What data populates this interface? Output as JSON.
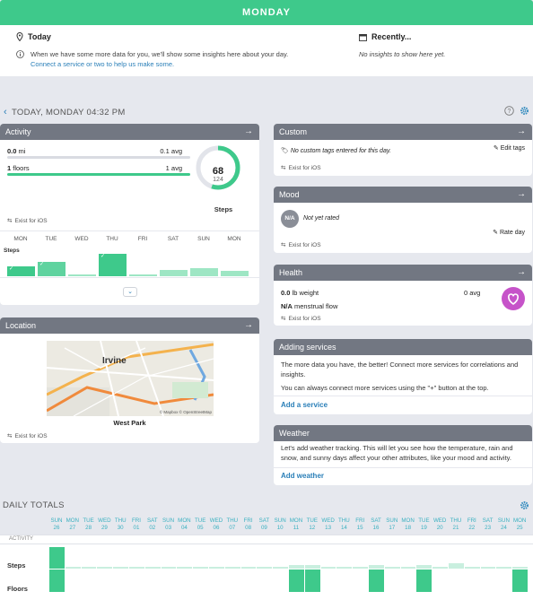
{
  "topbar": {
    "title": "MONDAY"
  },
  "today": {
    "title": "Today",
    "text": "When we have some more data for you, we'll show some insights here about your day.",
    "link": "Connect a service or two to help us make some."
  },
  "recently": {
    "title": "Recently...",
    "text": "No insights to show here yet."
  },
  "subheader": {
    "title": "TODAY, MONDAY 04:32 PM"
  },
  "activity": {
    "title": "Activity",
    "rows": [
      {
        "value": "0.0",
        "unit": "mi",
        "avg": "0.1 avg"
      },
      {
        "value": "1",
        "unit": "floors",
        "avg": "1 avg"
      }
    ],
    "steps": {
      "value": "68",
      "goal": "124",
      "label": "Steps",
      "progress": 0.55
    },
    "ios_label": "Exist for iOS",
    "days": [
      "MON",
      "TUE",
      "WED",
      "THU",
      "FRI",
      "SAT",
      "SUN",
      "MON"
    ],
    "chart_label": "Steps",
    "day_levels": [
      0.45,
      0.65,
      0.1,
      1.0,
      0.1,
      0.3,
      0.35,
      0.25
    ],
    "day_checked": [
      true,
      true,
      false,
      true,
      false,
      false,
      false,
      false
    ]
  },
  "location": {
    "title": "Location",
    "caption": "West Park",
    "map_label": "Irvine",
    "map_credit": "© Mapbox © OpenStreetMap",
    "ios_label": "Exist for iOS"
  },
  "custom": {
    "title": "Custom",
    "text": "No custom tags entered for this day.",
    "action": "Edit tags",
    "ios_label": "Exist for iOS"
  },
  "mood": {
    "title": "Mood",
    "badge": "N/A",
    "text": "Not yet rated",
    "action": "Rate day",
    "ios_label": "Exist for iOS"
  },
  "health": {
    "title": "Health",
    "weight": {
      "value": "0.0",
      "unit": "lb weight",
      "avg": "0 avg"
    },
    "flow": {
      "value": "N/A",
      "unit": "menstrual flow"
    },
    "ios_label": "Exist for iOS"
  },
  "adding_services": {
    "title": "Adding services",
    "text1": "The more data you have, the better! Connect more services for correlations and insights.",
    "text2": "You can always connect more services using the \"+\" button at the top.",
    "action": "Add a service"
  },
  "weather": {
    "title": "Weather",
    "text": "Let's add weather tracking. This will let you see how the temperature, rain and snow, and sunny days affect your other attributes, like your mood and activity.",
    "action": "Add weather"
  },
  "daily_totals": {
    "title": "DAILY TOTALS",
    "section_label": "ACTIVITY",
    "rows": [
      "Steps",
      "Floors"
    ],
    "days": [
      {
        "d": "SUN",
        "n": "26"
      },
      {
        "d": "MON",
        "n": "27"
      },
      {
        "d": "TUE",
        "n": "28"
      },
      {
        "d": "WED",
        "n": "29"
      },
      {
        "d": "THU",
        "n": "30"
      },
      {
        "d": "FRI",
        "n": "01"
      },
      {
        "d": "SAT",
        "n": "02"
      },
      {
        "d": "SUN",
        "n": "03"
      },
      {
        "d": "MON",
        "n": "04"
      },
      {
        "d": "TUE",
        "n": "05"
      },
      {
        "d": "WED",
        "n": "06"
      },
      {
        "d": "THU",
        "n": "07"
      },
      {
        "d": "FRI",
        "n": "08"
      },
      {
        "d": "SAT",
        "n": "09"
      },
      {
        "d": "SUN",
        "n": "10"
      },
      {
        "d": "MON",
        "n": "11"
      },
      {
        "d": "TUE",
        "n": "12"
      },
      {
        "d": "WED",
        "n": "13"
      },
      {
        "d": "THU",
        "n": "14"
      },
      {
        "d": "FRI",
        "n": "15"
      },
      {
        "d": "SAT",
        "n": "16"
      },
      {
        "d": "SUN",
        "n": "17"
      },
      {
        "d": "MON",
        "n": "18"
      },
      {
        "d": "TUE",
        "n": "19"
      },
      {
        "d": "WED",
        "n": "20"
      },
      {
        "d": "THU",
        "n": "21"
      },
      {
        "d": "FRI",
        "n": "22"
      },
      {
        "d": "SAT",
        "n": "23"
      },
      {
        "d": "SUN",
        "n": "24"
      },
      {
        "d": "MON",
        "n": "25"
      }
    ],
    "steps_levels": [
      1.0,
      0.1,
      0.1,
      0.1,
      0.1,
      0.1,
      0.1,
      0.1,
      0.1,
      0.1,
      0.1,
      0.1,
      0.1,
      0.1,
      0.1,
      0.15,
      0.15,
      0.1,
      0.1,
      0.1,
      0.15,
      0.1,
      0.1,
      0.15,
      0.1,
      0.25,
      0.1,
      0.1,
      0.1,
      0.1
    ],
    "floors_levels": [
      1.0,
      0,
      0,
      0,
      0,
      0,
      0,
      0,
      0,
      0,
      0,
      0,
      0,
      0,
      0,
      1.0,
      1.0,
      0,
      0,
      0,
      1.0,
      0,
      0,
      1.0,
      0,
      0,
      0,
      0,
      0,
      1.0
    ]
  }
}
